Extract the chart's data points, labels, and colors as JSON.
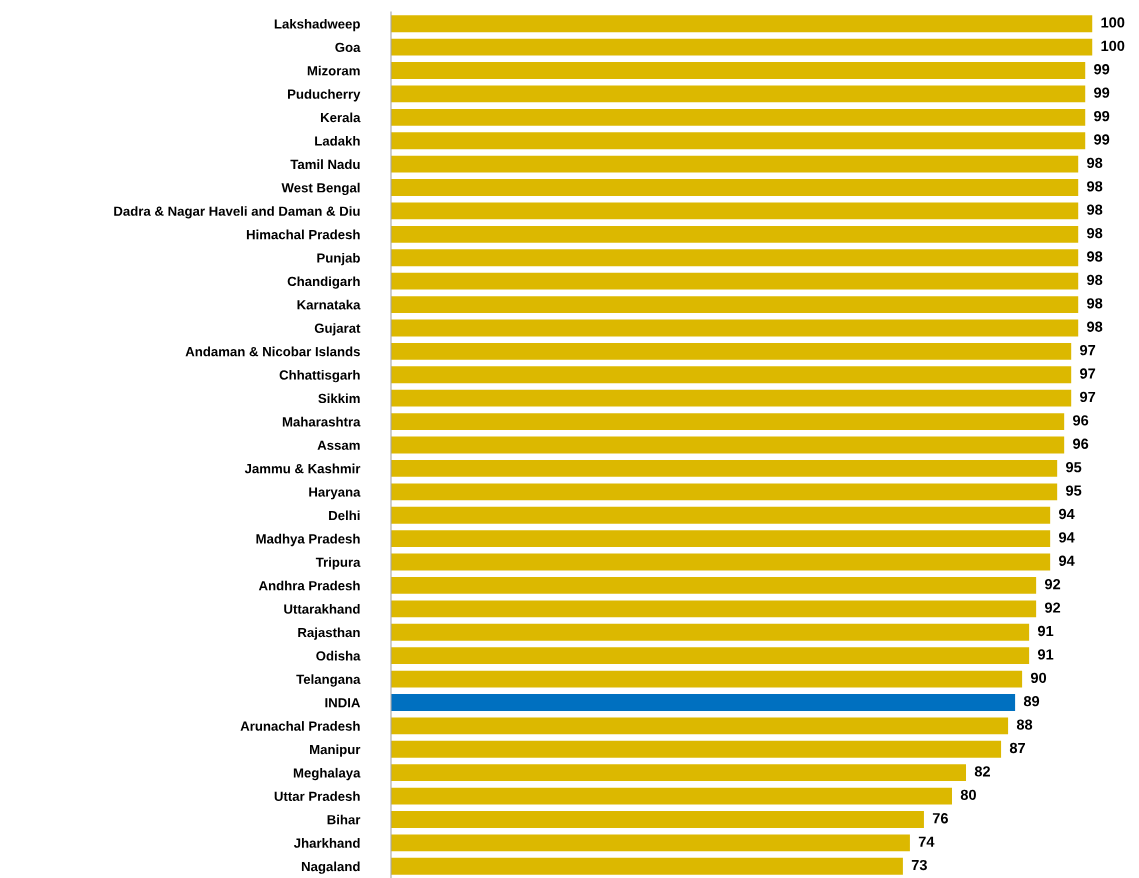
{
  "chart_data": {
    "type": "bar",
    "orientation": "horizontal",
    "data_labels": true,
    "categories": [
      "Lakshadweep",
      "Goa",
      "Mizoram",
      "Puducherry",
      "Kerala",
      "Ladakh",
      "Tamil Nadu",
      "West Bengal",
      "Dadra & Nagar Haveli and Daman & Diu",
      "Himachal Pradesh",
      "Punjab",
      "Chandigarh",
      "Karnataka",
      "Gujarat",
      "Andaman & Nicobar Islands",
      "Chhattisgarh",
      "Sikkim",
      "Maharashtra",
      "Assam",
      "Jammu & Kashmir",
      "Haryana",
      "Delhi",
      "Madhya Pradesh",
      "Tripura",
      "Andhra Pradesh",
      "Uttarakhand",
      "Rajasthan",
      "Odisha",
      "Telangana",
      "INDIA",
      "Arunachal Pradesh",
      "Manipur",
      "Meghalaya",
      "Uttar Pradesh",
      "Bihar",
      "Jharkhand",
      "Nagaland"
    ],
    "values": [
      100,
      100,
      99,
      99,
      99,
      99,
      98,
      98,
      98,
      98,
      98,
      98,
      98,
      98,
      97,
      97,
      97,
      96,
      96,
      95,
      95,
      94,
      94,
      94,
      92,
      92,
      91,
      91,
      90,
      89,
      88,
      87,
      82,
      80,
      76,
      74,
      73
    ],
    "colors": [
      "#dcb800",
      "#dcb800",
      "#dcb800",
      "#dcb800",
      "#dcb800",
      "#dcb800",
      "#dcb800",
      "#dcb800",
      "#dcb800",
      "#dcb800",
      "#dcb800",
      "#dcb800",
      "#dcb800",
      "#dcb800",
      "#dcb800",
      "#dcb800",
      "#dcb800",
      "#dcb800",
      "#dcb800",
      "#dcb800",
      "#dcb800",
      "#dcb800",
      "#dcb800",
      "#dcb800",
      "#dcb800",
      "#dcb800",
      "#dcb800",
      "#dcb800",
      "#dcb800",
      "#0070c0",
      "#dcb800",
      "#dcb800",
      "#dcb800",
      "#dcb800",
      "#dcb800",
      "#dcb800",
      "#dcb800"
    ]
  }
}
